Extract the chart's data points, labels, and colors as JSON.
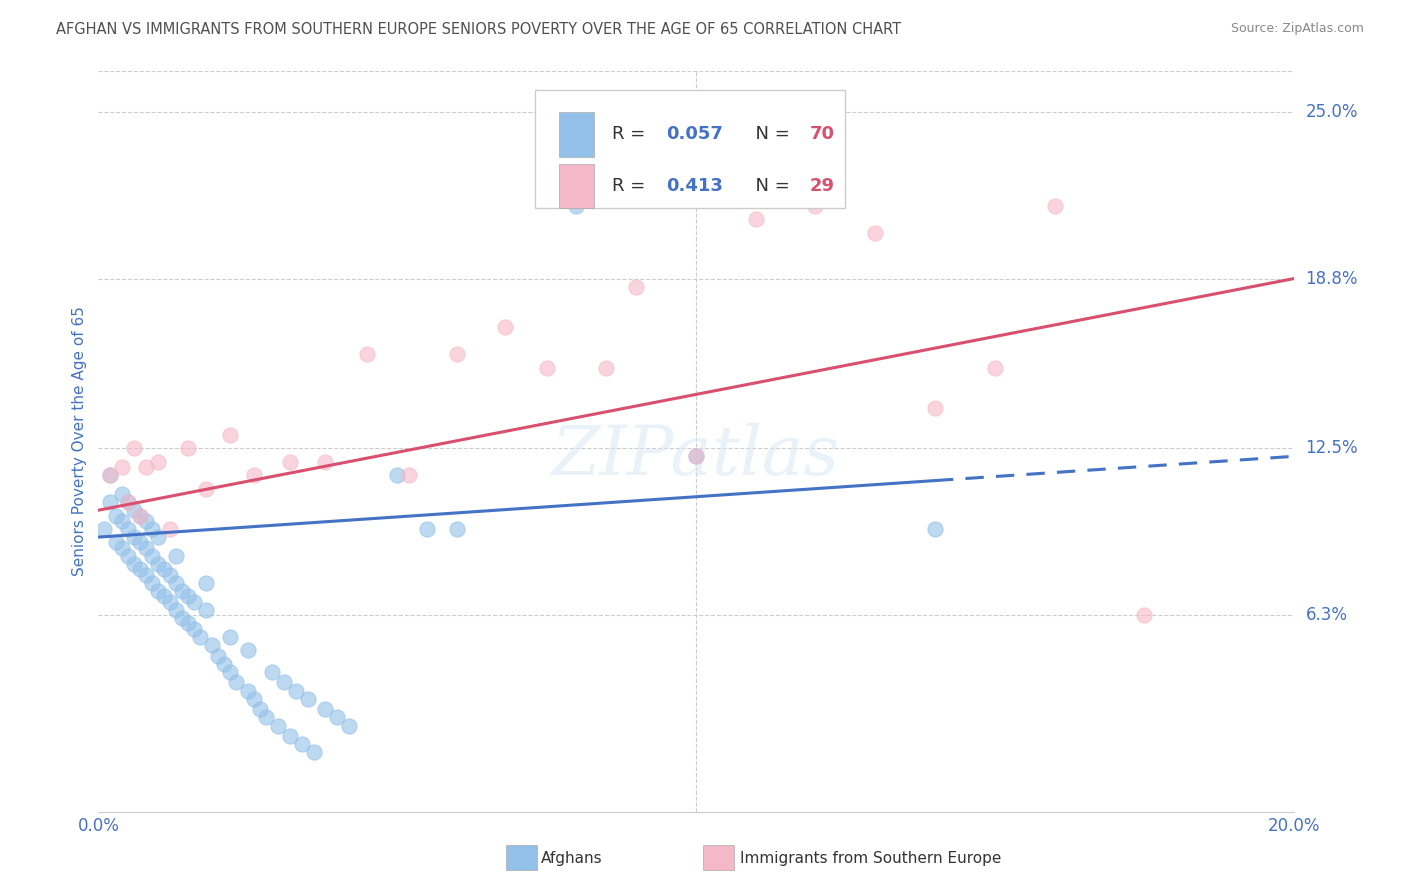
{
  "title": "AFGHAN VS IMMIGRANTS FROM SOUTHERN EUROPE SENIORS POVERTY OVER THE AGE OF 65 CORRELATION CHART",
  "source": "Source: ZipAtlas.com",
  "ylabel": "Seniors Poverty Over the Age of 65",
  "xlim": [
    0,
    0.2
  ],
  "ylim": [
    -0.01,
    0.265
  ],
  "ytick_vals": [
    0.063,
    0.125,
    0.188,
    0.25
  ],
  "ytick_labels": [
    "6.3%",
    "12.5%",
    "18.8%",
    "25.0%"
  ],
  "blue_R": 0.057,
  "blue_N": 70,
  "pink_R": 0.413,
  "pink_N": 29,
  "blue_color": "#92C0E8",
  "pink_color": "#F5B8C8",
  "trend_blue": "#4472C4",
  "trend_pink": "#D94F6E",
  "title_color": "#505050",
  "tick_label_color": "#4472C4",
  "background_color": "#FFFFFF",
  "grid_color": "#CCCCCC",
  "blue_x": [
    0.001,
    0.002,
    0.002,
    0.003,
    0.003,
    0.004,
    0.004,
    0.004,
    0.005,
    0.005,
    0.005,
    0.006,
    0.006,
    0.006,
    0.007,
    0.007,
    0.007,
    0.008,
    0.008,
    0.008,
    0.009,
    0.009,
    0.009,
    0.01,
    0.01,
    0.01,
    0.011,
    0.011,
    0.012,
    0.012,
    0.013,
    0.013,
    0.013,
    0.014,
    0.014,
    0.015,
    0.015,
    0.016,
    0.016,
    0.017,
    0.018,
    0.018,
    0.019,
    0.02,
    0.021,
    0.022,
    0.022,
    0.023,
    0.025,
    0.025,
    0.026,
    0.027,
    0.028,
    0.029,
    0.03,
    0.031,
    0.032,
    0.033,
    0.034,
    0.035,
    0.036,
    0.038,
    0.04,
    0.042,
    0.05,
    0.055,
    0.06,
    0.08,
    0.1,
    0.14
  ],
  "blue_y": [
    0.095,
    0.105,
    0.115,
    0.09,
    0.1,
    0.088,
    0.098,
    0.108,
    0.085,
    0.095,
    0.105,
    0.082,
    0.092,
    0.102,
    0.08,
    0.09,
    0.1,
    0.078,
    0.088,
    0.098,
    0.075,
    0.085,
    0.095,
    0.072,
    0.082,
    0.092,
    0.07,
    0.08,
    0.068,
    0.078,
    0.065,
    0.075,
    0.085,
    0.062,
    0.072,
    0.06,
    0.07,
    0.058,
    0.068,
    0.055,
    0.065,
    0.075,
    0.052,
    0.048,
    0.045,
    0.042,
    0.055,
    0.038,
    0.035,
    0.05,
    0.032,
    0.028,
    0.025,
    0.042,
    0.022,
    0.038,
    0.018,
    0.035,
    0.015,
    0.032,
    0.012,
    0.028,
    0.025,
    0.022,
    0.115,
    0.095,
    0.095,
    0.215,
    0.122,
    0.095
  ],
  "pink_x": [
    0.002,
    0.004,
    0.005,
    0.006,
    0.007,
    0.008,
    0.01,
    0.012,
    0.015,
    0.018,
    0.022,
    0.026,
    0.032,
    0.038,
    0.045,
    0.052,
    0.06,
    0.068,
    0.075,
    0.085,
    0.09,
    0.1,
    0.11,
    0.12,
    0.13,
    0.14,
    0.15,
    0.16,
    0.175
  ],
  "pink_y": [
    0.115,
    0.118,
    0.105,
    0.125,
    0.1,
    0.118,
    0.12,
    0.095,
    0.125,
    0.11,
    0.13,
    0.115,
    0.12,
    0.12,
    0.16,
    0.115,
    0.16,
    0.17,
    0.155,
    0.155,
    0.185,
    0.122,
    0.21,
    0.215,
    0.205,
    0.14,
    0.155,
    0.215,
    0.063
  ],
  "blue_trend_start_x": 0.0,
  "blue_trend_solid_end_x": 0.14,
  "blue_trend_dash_end_x": 0.2,
  "pink_trend_start_x": 0.0,
  "pink_trend_end_x": 0.2,
  "blue_trend_start_y": 0.092,
  "blue_trend_end_y": 0.122,
  "pink_trend_start_y": 0.102,
  "pink_trend_end_y": 0.188
}
